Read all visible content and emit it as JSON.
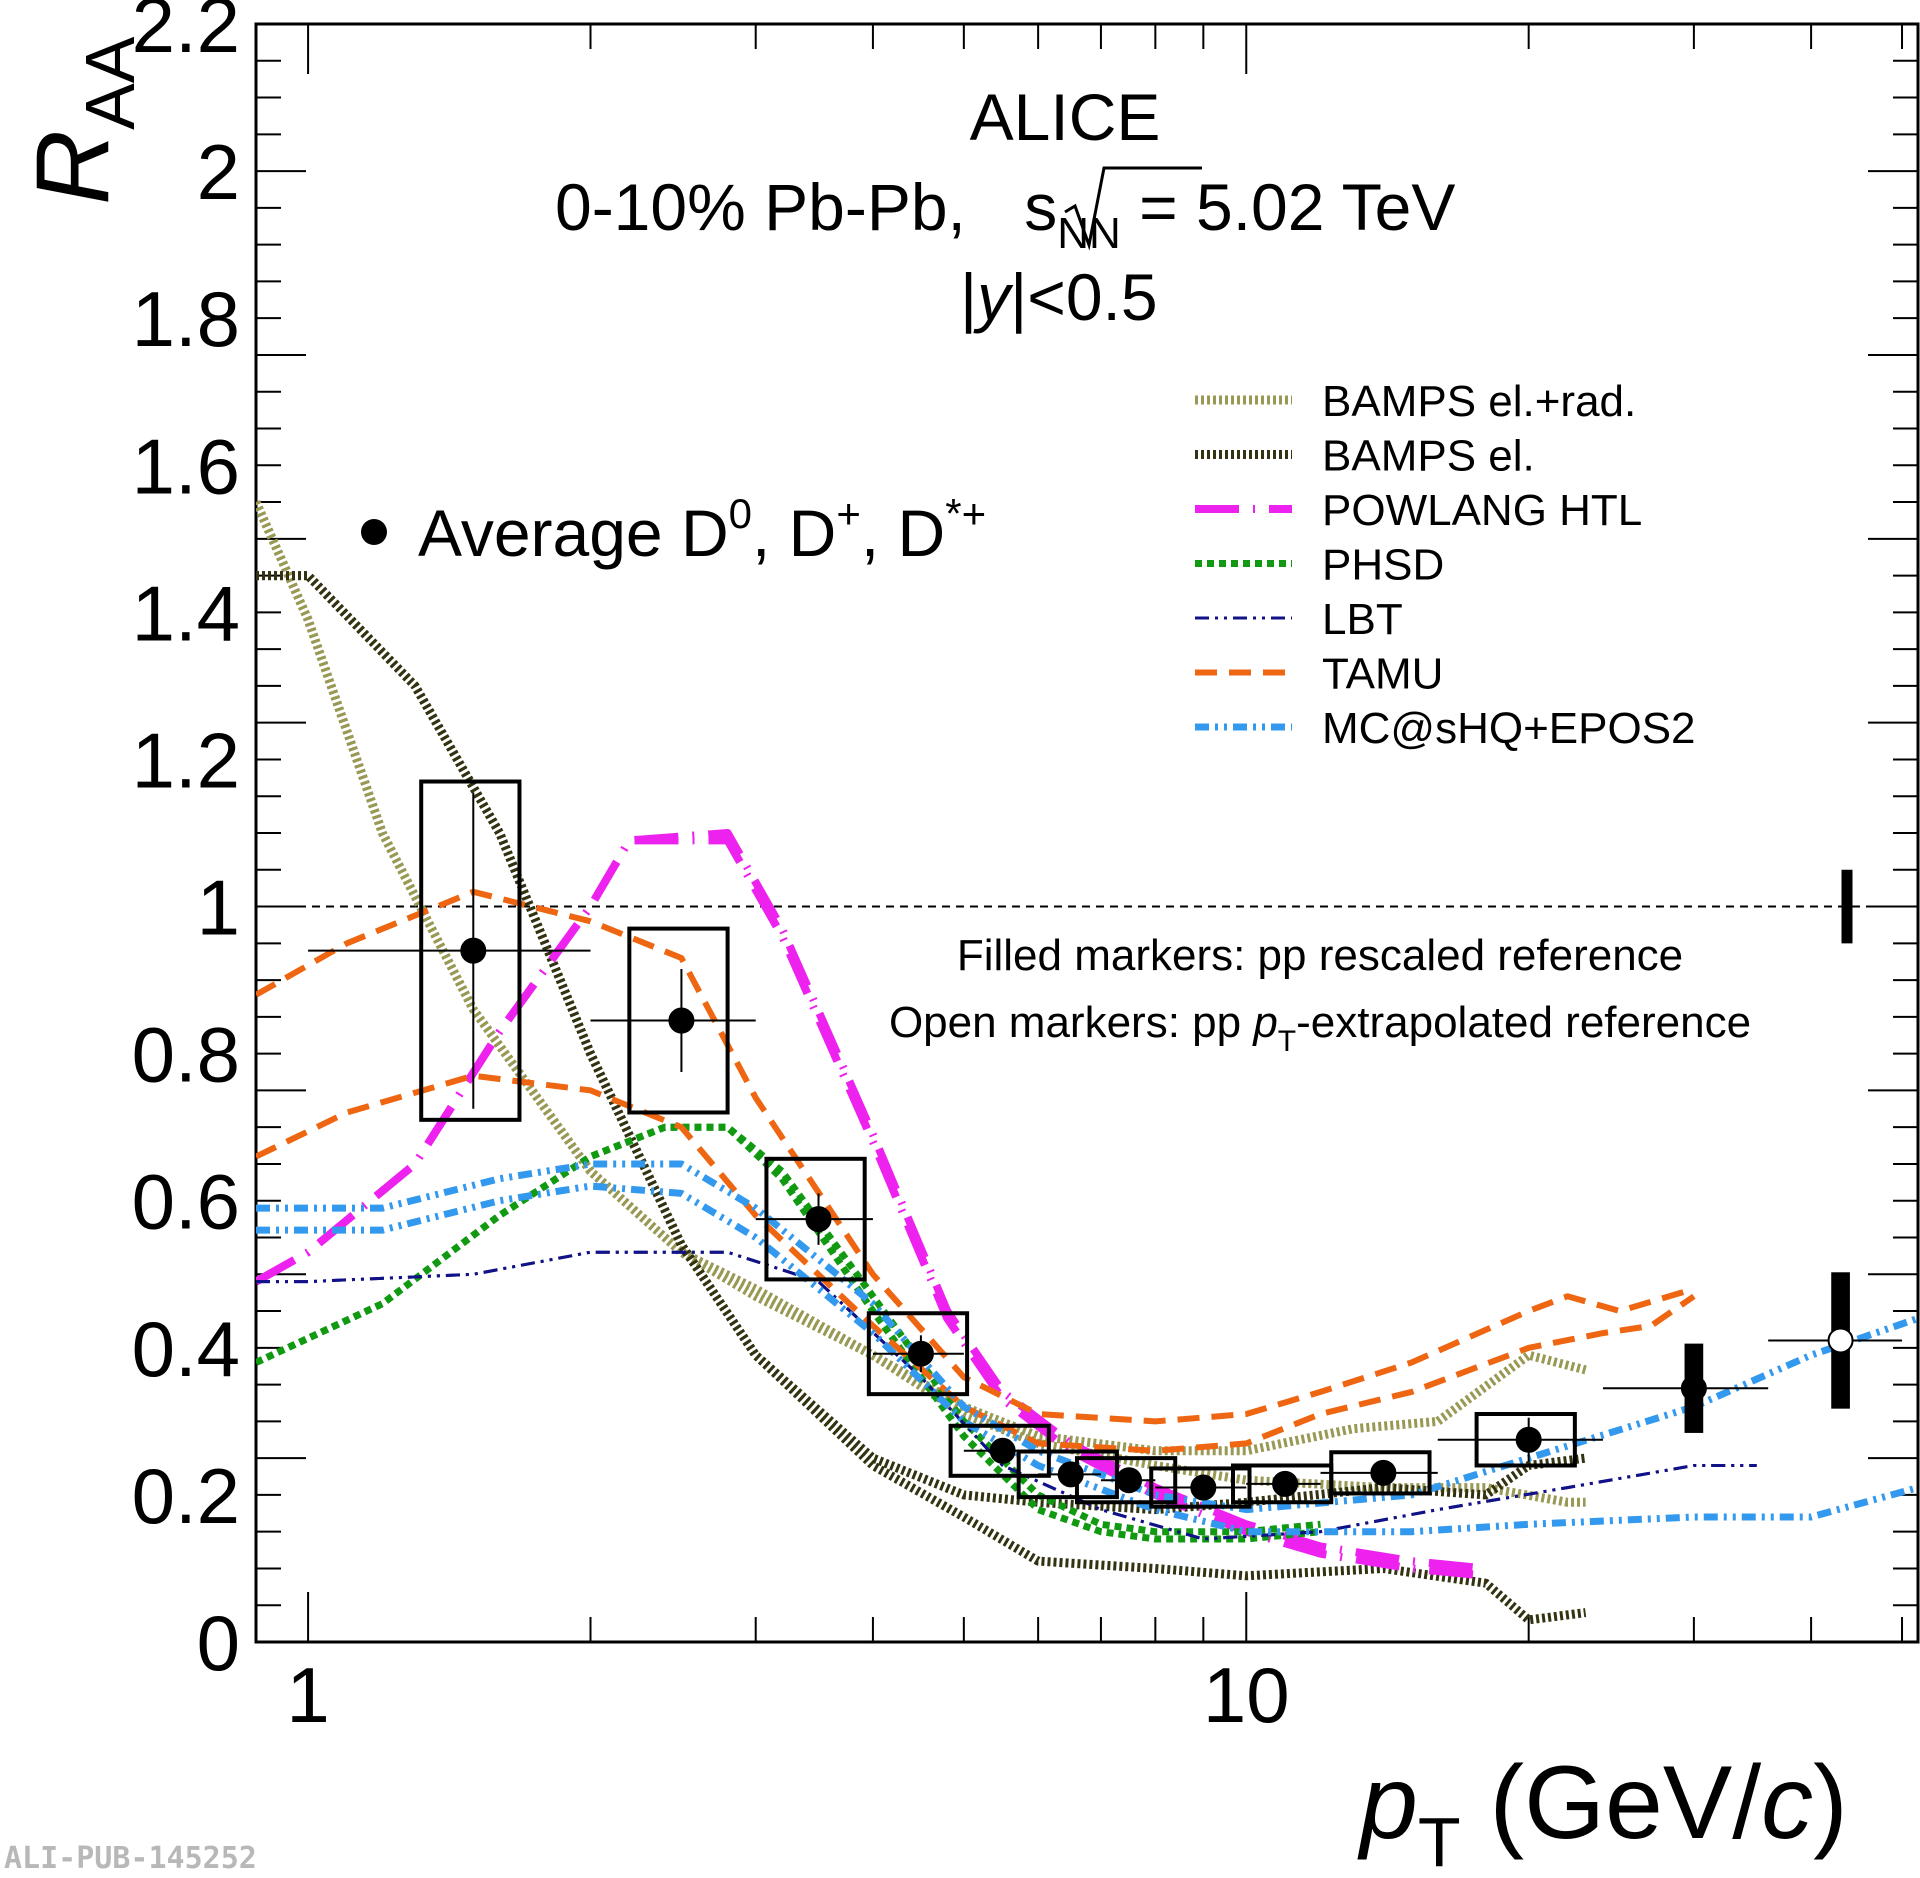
{
  "chart_data": {
    "type": "scatter",
    "title": "ALICE",
    "subtitle": "0-10% Pb-Pb, √sNN = 5.02 TeV",
    "rapidity": "|y|<0.5",
    "xlabel": "pT (GeV/c)",
    "ylabel": "RAA",
    "xscale": "log",
    "xlim": [
      0.88,
      52
    ],
    "ylim": [
      0,
      2.2
    ],
    "x_ticks": [
      "1",
      "10"
    ],
    "y_ticks": [
      "0",
      "0.2",
      "0.4",
      "0.6",
      "0.8",
      "1",
      "1.2",
      "1.4",
      "1.6",
      "1.8",
      "2",
      "2.2"
    ],
    "reference_line": 1,
    "normalization_uncertainty": 0.05,
    "data_series": {
      "name": "Average D0, D+, D*+",
      "points": [
        {
          "x": 1.5,
          "y": 0.94,
          "xlo": 1.0,
          "xhi": 2.0,
          "stat": 0.215,
          "syst": 0.23,
          "open": false
        },
        {
          "x": 2.5,
          "y": 0.845,
          "xlo": 2.0,
          "xhi": 3.0,
          "stat": 0.07,
          "syst": 0.125,
          "open": false
        },
        {
          "x": 3.5,
          "y": 0.575,
          "xlo": 3.0,
          "xhi": 4.0,
          "stat": 0.035,
          "syst": 0.082,
          "open": false
        },
        {
          "x": 4.5,
          "y": 0.392,
          "xlo": 4.0,
          "xhi": 5.0,
          "stat": 0.025,
          "syst": 0.055,
          "open": false
        },
        {
          "x": 5.5,
          "y": 0.26,
          "xlo": 5.0,
          "xhi": 6.0,
          "stat": 0.014,
          "syst": 0.034,
          "open": false
        },
        {
          "x": 6.5,
          "y": 0.228,
          "xlo": 6.0,
          "xhi": 7.0,
          "stat": 0.012,
          "syst": 0.031,
          "open": false
        },
        {
          "x": 7.5,
          "y": 0.22,
          "xlo": 7.0,
          "xhi": 8.0,
          "stat": 0.012,
          "syst": 0.03,
          "open": false
        },
        {
          "x": 9.0,
          "y": 0.21,
          "xlo": 8.0,
          "xhi": 10.0,
          "stat": 0.01,
          "syst": 0.026,
          "open": false
        },
        {
          "x": 11.0,
          "y": 0.215,
          "xlo": 10.0,
          "xhi": 12.0,
          "stat": 0.013,
          "syst": 0.025,
          "open": false
        },
        {
          "x": 14.0,
          "y": 0.23,
          "xlo": 12.0,
          "xhi": 16.0,
          "stat": 0.015,
          "syst": 0.028,
          "open": false
        },
        {
          "x": 20.0,
          "y": 0.275,
          "xlo": 16.0,
          "xhi": 24.0,
          "stat": 0.03,
          "syst": 0.035,
          "open": false
        },
        {
          "x": 30.0,
          "y": 0.345,
          "xlo": 24.0,
          "xhi": 36.0,
          "stat": 0.06,
          "syst": 0.058,
          "open": false
        },
        {
          "x": 43.0,
          "y": 0.41,
          "xlo": 36.0,
          "xhi": 50.0,
          "stat": 0.09,
          "syst": 0.09,
          "open": true
        }
      ]
    },
    "models": [
      {
        "name": "BAMPS el.+rad.",
        "color": "#999955",
        "style": "hatched",
        "lower": [
          [
            0.88,
            1.55
          ],
          [
            1.0,
            1.39
          ],
          [
            1.2,
            1.1
          ],
          [
            1.5,
            0.86
          ],
          [
            2.0,
            0.64
          ],
          [
            2.5,
            0.53
          ],
          [
            3.0,
            0.47
          ],
          [
            4.0,
            0.39
          ],
          [
            5.0,
            0.31
          ],
          [
            6.0,
            0.27
          ],
          [
            8.0,
            0.24
          ],
          [
            10.0,
            0.22
          ],
          [
            14.0,
            0.21
          ],
          [
            18.0,
            0.21
          ],
          [
            22.0,
            0.19
          ],
          [
            23.0,
            0.19
          ]
        ],
        "upper": [
          [
            0.88,
            1.55
          ],
          [
            1.0,
            1.39
          ],
          [
            1.2,
            1.1
          ],
          [
            1.5,
            0.86
          ],
          [
            2.0,
            0.64
          ],
          [
            2.5,
            0.53
          ],
          [
            3.0,
            0.48
          ],
          [
            4.0,
            0.39
          ],
          [
            5.0,
            0.32
          ],
          [
            6.0,
            0.28
          ],
          [
            8.0,
            0.26
          ],
          [
            10.0,
            0.26
          ],
          [
            13.0,
            0.29
          ],
          [
            16.0,
            0.3
          ],
          [
            20.0,
            0.39
          ],
          [
            23.0,
            0.37
          ]
        ]
      },
      {
        "name": "BAMPS el.",
        "color": "#333311",
        "style": "hatched",
        "lower": [
          [
            0.88,
            1.45
          ],
          [
            1.0,
            1.45
          ],
          [
            1.3,
            1.3
          ],
          [
            1.6,
            1.1
          ],
          [
            2.0,
            0.8
          ],
          [
            2.5,
            0.54
          ],
          [
            3.0,
            0.39
          ],
          [
            4.0,
            0.24
          ],
          [
            5.0,
            0.17
          ],
          [
            6.0,
            0.11
          ],
          [
            8.0,
            0.1
          ],
          [
            10.0,
            0.09
          ],
          [
            14.0,
            0.1
          ],
          [
            18.0,
            0.08
          ],
          [
            20.0,
            0.03
          ],
          [
            23.0,
            0.04
          ]
        ],
        "upper": [
          [
            0.88,
            1.45
          ],
          [
            1.0,
            1.45
          ],
          [
            1.3,
            1.3
          ],
          [
            1.6,
            1.1
          ],
          [
            2.0,
            0.8
          ],
          [
            2.5,
            0.54
          ],
          [
            3.0,
            0.39
          ],
          [
            4.0,
            0.25
          ],
          [
            5.0,
            0.2
          ],
          [
            6.0,
            0.19
          ],
          [
            8.0,
            0.18
          ],
          [
            10.0,
            0.19
          ],
          [
            14.0,
            0.21
          ],
          [
            18.0,
            0.2
          ],
          [
            20.0,
            0.24
          ],
          [
            23.0,
            0.25
          ]
        ]
      },
      {
        "name": "POWLANG HTL",
        "color": "#ee22ee",
        "style": "longdash",
        "lower": [
          [
            0.88,
            0.49
          ],
          [
            1.0,
            0.53
          ],
          [
            1.3,
            0.65
          ],
          [
            1.6,
            0.83
          ],
          [
            2.0,
            1.0
          ],
          [
            2.2,
            1.09
          ],
          [
            2.8,
            1.09
          ],
          [
            3.2,
            0.96
          ],
          [
            4.0,
            0.68
          ],
          [
            4.8,
            0.44
          ],
          [
            5.5,
            0.33
          ],
          [
            6.5,
            0.26
          ],
          [
            8.0,
            0.2
          ],
          [
            10.0,
            0.15
          ],
          [
            12.0,
            0.12
          ],
          [
            15.0,
            0.1
          ],
          [
            18.0,
            0.09
          ]
        ],
        "upper": [
          [
            0.88,
            0.49
          ],
          [
            1.0,
            0.53
          ],
          [
            1.3,
            0.65
          ],
          [
            1.6,
            0.83
          ],
          [
            2.0,
            1.0
          ],
          [
            2.2,
            1.09
          ],
          [
            2.8,
            1.1
          ],
          [
            3.2,
            0.97
          ],
          [
            4.0,
            0.69
          ],
          [
            4.8,
            0.45
          ],
          [
            5.5,
            0.34
          ],
          [
            6.5,
            0.27
          ],
          [
            8.0,
            0.21
          ],
          [
            10.0,
            0.16
          ],
          [
            12.0,
            0.13
          ],
          [
            15.0,
            0.11
          ],
          [
            18.0,
            0.1
          ]
        ]
      },
      {
        "name": "PHSD",
        "color": "#119911",
        "style": "dotted",
        "lower": [
          [
            0.88,
            0.38
          ],
          [
            1.2,
            0.46
          ],
          [
            1.6,
            0.58
          ],
          [
            2.0,
            0.66
          ],
          [
            2.4,
            0.7
          ],
          [
            2.8,
            0.7
          ],
          [
            3.2,
            0.63
          ],
          [
            4.0,
            0.45
          ],
          [
            5.0,
            0.28
          ],
          [
            6.0,
            0.18
          ],
          [
            7.0,
            0.15
          ],
          [
            8.0,
            0.14
          ],
          [
            10.0,
            0.14
          ],
          [
            12.0,
            0.15
          ]
        ],
        "upper": [
          [
            0.88,
            0.38
          ],
          [
            1.2,
            0.46
          ],
          [
            1.6,
            0.58
          ],
          [
            2.0,
            0.66
          ],
          [
            2.4,
            0.7
          ],
          [
            2.8,
            0.7
          ],
          [
            3.2,
            0.64
          ],
          [
            4.0,
            0.47
          ],
          [
            5.0,
            0.3
          ],
          [
            6.0,
            0.2
          ],
          [
            7.0,
            0.16
          ],
          [
            8.0,
            0.15
          ],
          [
            10.0,
            0.15
          ],
          [
            12.0,
            0.16
          ]
        ]
      },
      {
        "name": "LBT",
        "color": "#111188",
        "style": "dashdotdot",
        "lower": [
          [
            0.88,
            0.49
          ],
          [
            1.0,
            0.49
          ],
          [
            1.5,
            0.5
          ],
          [
            2.0,
            0.53
          ],
          [
            2.8,
            0.53
          ],
          [
            3.5,
            0.49
          ],
          [
            4.5,
            0.36
          ],
          [
            5.5,
            0.24
          ],
          [
            7.0,
            0.18
          ],
          [
            9.0,
            0.14
          ],
          [
            12.0,
            0.15
          ],
          [
            16.0,
            0.18
          ],
          [
            22.0,
            0.21
          ],
          [
            30.0,
            0.24
          ],
          [
            35.0,
            0.24
          ]
        ],
        "upper": [
          [
            0.88,
            0.49
          ],
          [
            1.0,
            0.49
          ],
          [
            1.5,
            0.5
          ],
          [
            2.0,
            0.53
          ],
          [
            2.8,
            0.53
          ],
          [
            3.5,
            0.49
          ],
          [
            4.5,
            0.36
          ],
          [
            5.5,
            0.24
          ],
          [
            7.0,
            0.18
          ],
          [
            9.0,
            0.14
          ],
          [
            12.0,
            0.15
          ],
          [
            16.0,
            0.18
          ],
          [
            22.0,
            0.21
          ],
          [
            30.0,
            0.24
          ],
          [
            35.0,
            0.24
          ]
        ]
      },
      {
        "name": "TAMU",
        "color": "#ee6611",
        "style": "dashed",
        "lower": [
          [
            0.88,
            0.66
          ],
          [
            1.1,
            0.72
          ],
          [
            1.5,
            0.77
          ],
          [
            2.0,
            0.75
          ],
          [
            2.5,
            0.7
          ],
          [
            3.0,
            0.58
          ],
          [
            4.0,
            0.43
          ],
          [
            5.0,
            0.32
          ],
          [
            6.0,
            0.27
          ],
          [
            8.0,
            0.26
          ],
          [
            10.0,
            0.27
          ],
          [
            12.0,
            0.31
          ],
          [
            15.0,
            0.34
          ],
          [
            20.0,
            0.4
          ],
          [
            24.0,
            0.42
          ],
          [
            27.0,
            0.43
          ],
          [
            30.0,
            0.47
          ]
        ],
        "upper": [
          [
            0.88,
            0.88
          ],
          [
            1.1,
            0.95
          ],
          [
            1.5,
            1.02
          ],
          [
            2.0,
            0.98
          ],
          [
            2.5,
            0.93
          ],
          [
            3.0,
            0.74
          ],
          [
            4.0,
            0.5
          ],
          [
            5.0,
            0.36
          ],
          [
            6.0,
            0.31
          ],
          [
            8.0,
            0.3
          ],
          [
            10.0,
            0.31
          ],
          [
            12.0,
            0.34
          ],
          [
            15.0,
            0.38
          ],
          [
            20.0,
            0.45
          ],
          [
            22.0,
            0.47
          ],
          [
            25.0,
            0.45
          ],
          [
            30.0,
            0.48
          ]
        ]
      },
      {
        "name": "MC@sHQ+EPOS2",
        "color": "#3399ee",
        "style": "dashdotdot",
        "lower": [
          [
            0.88,
            0.56
          ],
          [
            1.2,
            0.56
          ],
          [
            1.6,
            0.6
          ],
          [
            2.0,
            0.62
          ],
          [
            2.5,
            0.61
          ],
          [
            3.0,
            0.55
          ],
          [
            4.0,
            0.42
          ],
          [
            5.0,
            0.3
          ],
          [
            6.0,
            0.24
          ],
          [
            8.0,
            0.18
          ],
          [
            10.0,
            0.15
          ],
          [
            15.0,
            0.15
          ],
          [
            20.0,
            0.16
          ],
          [
            30.0,
            0.17
          ],
          [
            40.0,
            0.17
          ],
          [
            52.0,
            0.21
          ]
        ],
        "upper": [
          [
            0.88,
            0.59
          ],
          [
            1.2,
            0.59
          ],
          [
            1.6,
            0.63
          ],
          [
            2.0,
            0.65
          ],
          [
            2.5,
            0.65
          ],
          [
            3.0,
            0.59
          ],
          [
            4.0,
            0.46
          ],
          [
            5.0,
            0.32
          ],
          [
            6.0,
            0.26
          ],
          [
            8.0,
            0.2
          ],
          [
            10.0,
            0.18
          ],
          [
            15.0,
            0.2
          ],
          [
            20.0,
            0.25
          ],
          [
            30.0,
            0.32
          ],
          [
            40.0,
            0.39
          ],
          [
            52.0,
            0.44
          ]
        ]
      }
    ]
  },
  "header": {
    "experiment": "ALICE",
    "system_prefix": "0-10% Pb-Pb, ",
    "energy_suffix": " = 5.02 TeV",
    "rapidity_bar_open": "|",
    "rapidity_var": "y",
    "rapidity_rest": "|<0.5"
  },
  "data_legend": {
    "label_prefix": "Average D",
    "sup_zero": "0",
    "sep1": ", D",
    "sup_plus": "+",
    "sep2": ", D",
    "sup_starplus": "*+"
  },
  "notes": {
    "filled_markers": "Filled markers: pp rescaled reference",
    "open_prefix": "Open markers: pp ",
    "open_suffix": "-extrapolated reference"
  },
  "axis_text": {
    "y_main": "R",
    "y_sub": "AA",
    "x_main": "p",
    "x_sub": "T",
    "x_unit_open": " (GeV/",
    "x_unit_c": "c",
    "x_unit_close": ")",
    "sqrt_s": "s",
    "sqrt_sub": "NN",
    "pt_p": "p",
    "pt_T": "T"
  },
  "colors": {
    "bamps_elrad": "#999955",
    "bamps_el": "#333311",
    "powlang": "#ee22ee",
    "phsd": "#119911",
    "lbt": "#111188",
    "tamu": "#ee6611",
    "mcshq": "#3399ee"
  },
  "publication_id": "ALI-PUB-145252"
}
